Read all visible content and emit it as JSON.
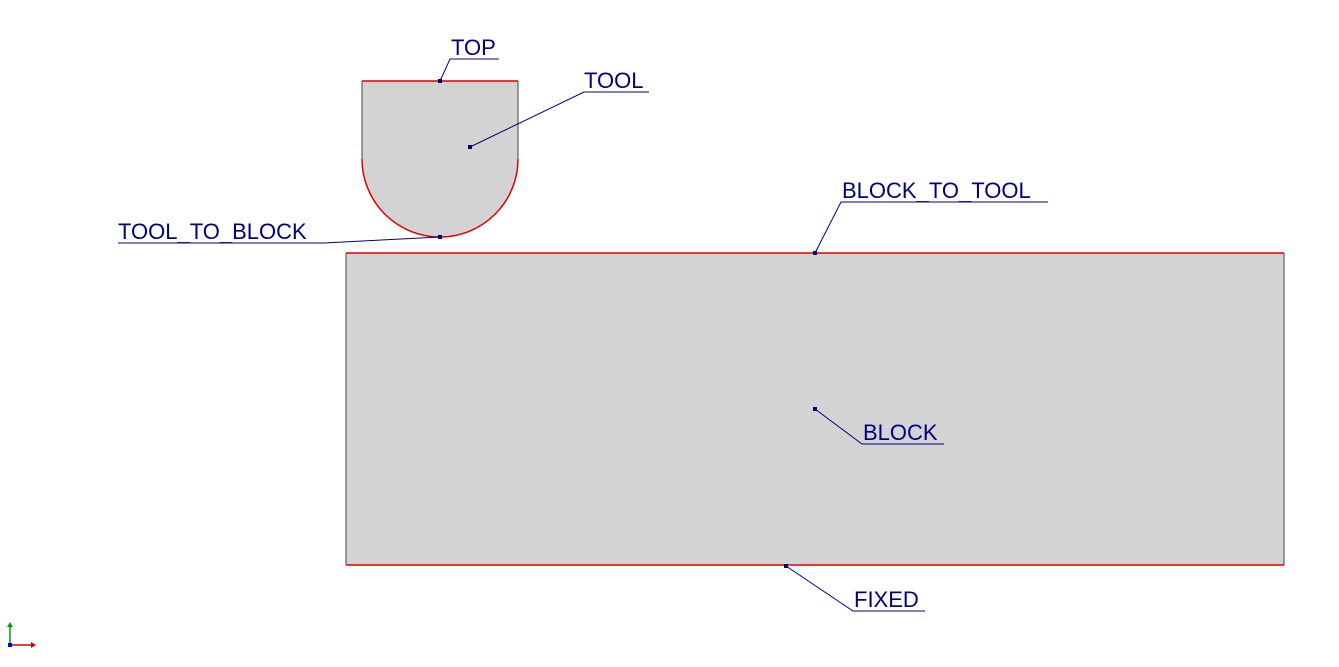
{
  "colors": {
    "background": "#ffffff",
    "fill": "#d3d3d3",
    "boundary": "#e00000",
    "outline": "#444444",
    "label": "#00007f",
    "leader": "#00007f",
    "axis_x": "#d00000",
    "axis_y": "#00a000",
    "axis_z": "#0000d0"
  },
  "parts": [
    {
      "name": "TOOL"
    },
    {
      "name": "BLOCK"
    }
  ],
  "labels": {
    "top": "TOP",
    "tool": "TOOL",
    "block_to_tool": "BLOCK_TO_TOOL",
    "tool_to_block": "TOOL_TO_BLOCK",
    "block": "BLOCK",
    "fixed": "FIXED"
  },
  "icons": {
    "triad": "axis-triad-icon"
  }
}
